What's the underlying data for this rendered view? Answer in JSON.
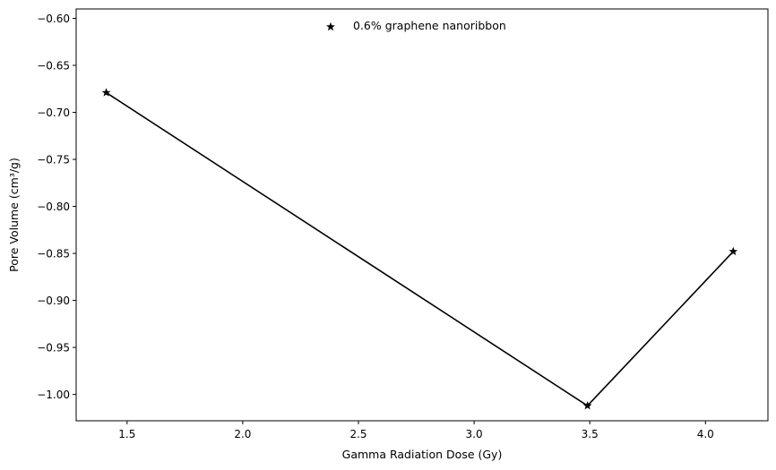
{
  "chart_data": {
    "type": "line",
    "title": "",
    "xlabel": "Gamma Radiation Dose (Gy)",
    "ylabel": "Pore Volume (cm³/g)",
    "xlim": [
      1.28,
      4.27
    ],
    "ylim": [
      -1.028,
      -0.59
    ],
    "xticks": [
      1.5,
      2.0,
      2.5,
      3.0,
      3.5,
      4.0
    ],
    "xtick_labels": [
      "1.5",
      "2.0",
      "2.5",
      "3.0",
      "3.5",
      "4.0"
    ],
    "yticks": [
      -0.6,
      -0.65,
      -0.7,
      -0.75,
      -0.8,
      -0.85,
      -0.9,
      -0.95,
      -1.0
    ],
    "ytick_labels": [
      "−0.60",
      "−0.65",
      "−0.70",
      "−0.75",
      "−0.80",
      "−0.85",
      "−0.90",
      "−0.95",
      "−1.00"
    ],
    "grid": false,
    "legend_position": "top-center",
    "series": [
      {
        "name": "0.6% graphene nanoribbon",
        "marker": "star",
        "color": "#000000",
        "x": [
          1.41,
          3.49,
          4.12
        ],
        "y": [
          -0.679,
          -1.012,
          -0.848
        ]
      }
    ]
  }
}
